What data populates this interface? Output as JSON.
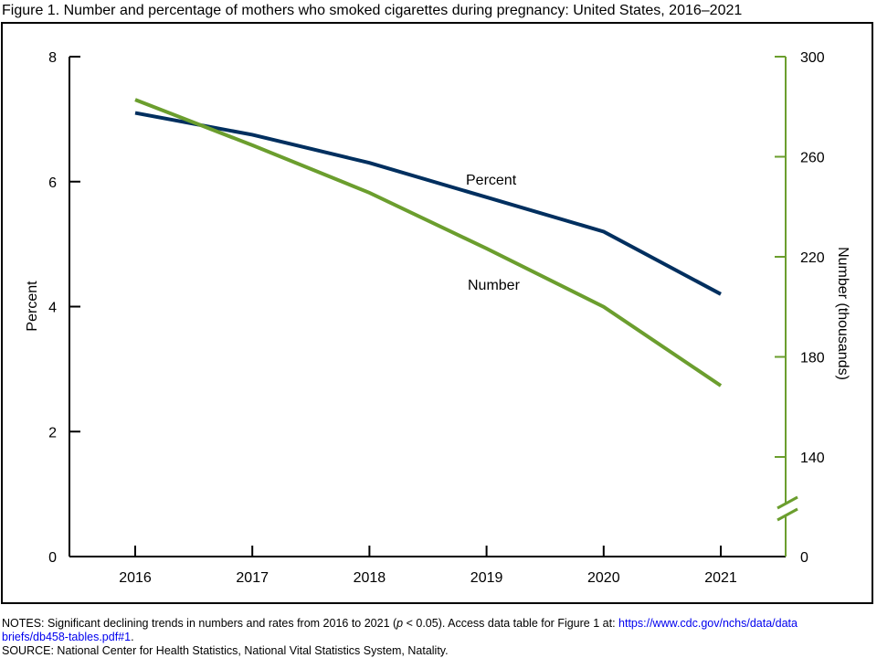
{
  "chart_data": {
    "type": "line",
    "title": "Figure 1. Number and percentage of mothers who smoked cigarettes during pregnancy: United States, 2016–2021",
    "x": [
      "2016",
      "2017",
      "2018",
      "2019",
      "2020",
      "2021"
    ],
    "ylabel": "Percent",
    "ylabel_right": "Number (thousands)",
    "ylim": [
      0,
      8
    ],
    "yticks": [
      "0",
      "2",
      "4",
      "6",
      "8"
    ],
    "ylim_right": [
      0,
      300
    ],
    "yticks_right": [
      "0",
      "140",
      "180",
      "220",
      "260",
      "300"
    ],
    "right_axis_break": true,
    "grid": false,
    "series": [
      {
        "name": "Percent",
        "axis": "left",
        "color": "#002f5f",
        "values": [
          7.1,
          6.75,
          6.3,
          5.75,
          5.2,
          4.2
        ]
      },
      {
        "name": "Number",
        "axis": "right",
        "color": "#6b9e2e",
        "values": [
          282.8,
          264.6,
          245.6,
          223.3,
          200.0,
          168.5
        ]
      }
    ]
  },
  "notes": {
    "prefix": "NOTES: Significant declining trends in numbers and rates from 2016 to 2021 (",
    "p": "p",
    "mid": " < 0.05). Access data table for Figure 1 at: ",
    "link1": "https://www.cdc.gov/nchs/data/data",
    "link2": "briefs/db458-tables.pdf#1",
    "end": ".",
    "source": "SOURCE: National Center for Health Statistics, National Vital Statistics System, Natality."
  }
}
